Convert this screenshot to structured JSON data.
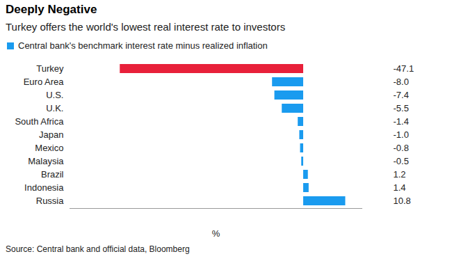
{
  "chart_data": {
    "type": "bar",
    "title": "Deeply Negative",
    "subtitle": "Turkey offers the world's lowest real interest rate to investors",
    "source": "Source: Central bank and official data, Bloomberg",
    "x_label": "%",
    "orientation": "horizontal",
    "categories": [
      "Turkey",
      "Euro Area",
      "U.S.",
      "U.K.",
      "South Africa",
      "Japan",
      "Mexico",
      "Malaysia",
      "Brazil",
      "Indonesia",
      "Russia"
    ],
    "series": [
      {
        "name": "Central bank's benchmark interest rate minus realized inflation",
        "color": "#1a9bef",
        "values": [
          -47.1,
          -8.0,
          -7.4,
          -5.5,
          -1.4,
          -1.0,
          -0.8,
          -0.5,
          1.2,
          1.4,
          10.8
        ],
        "value_labels": [
          "-47.1",
          "-8.0",
          "-7.4",
          "-5.5",
          "-1.4",
          "-1.0",
          "-0.8",
          "-0.5",
          "1.2",
          "1.4",
          "10.8"
        ]
      }
    ],
    "colors": [
      "#e8203a",
      "#1a9bef",
      "#1a9bef",
      "#1a9bef",
      "#1a9bef",
      "#1a9bef",
      "#1a9bef",
      "#1a9bef",
      "#1a9bef",
      "#1a9bef",
      "#1a9bef"
    ],
    "xlim": [
      -60,
      15
    ],
    "xticks": [],
    "tick_labels": "y",
    "data_labels": true,
    "legend": "top-left",
    "grid": false
  }
}
